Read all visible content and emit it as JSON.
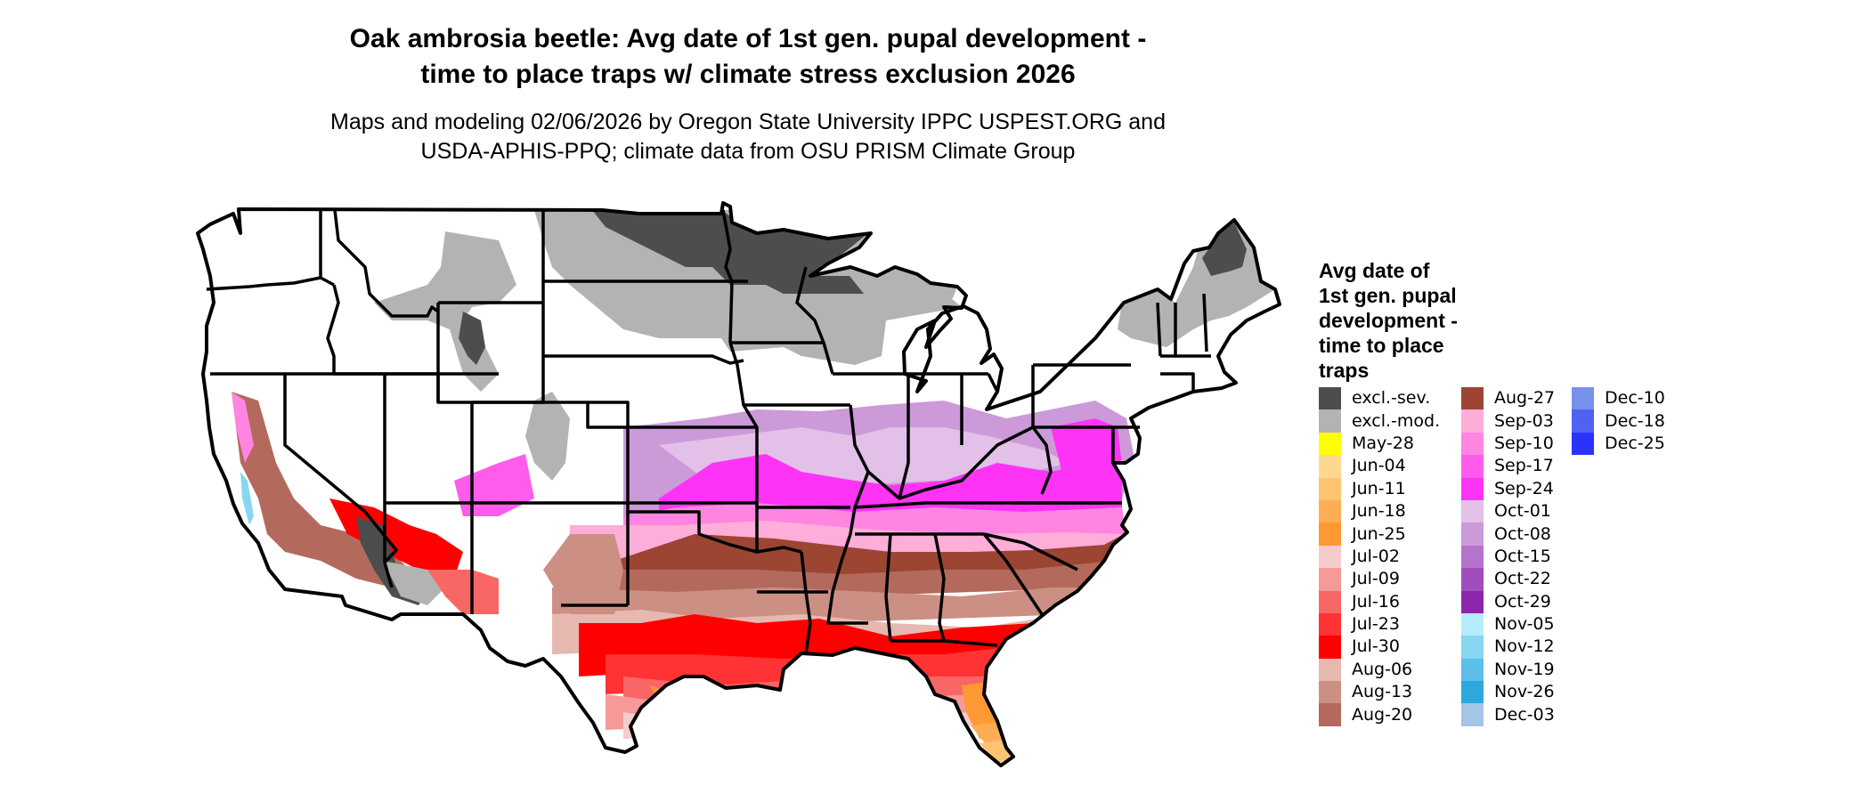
{
  "header": {
    "title_line1": "Oak ambrosia beetle: Avg date of 1st gen. pupal development -",
    "title_line2": "time to place traps w/ climate stress exclusion 2026",
    "subtitle_line1": "Maps and modeling 02/06/2026 by Oregon State University IPPC USPEST.ORG and",
    "subtitle_line2": "USDA-APHIS-PPQ; climate data from OSU PRISM Climate Group"
  },
  "map": {
    "region": "Contiguous United States",
    "border_color": "#000000"
  },
  "legend": {
    "title_lines": [
      "Avg date of",
      "1st gen. pupal",
      "development -",
      "time to place",
      "traps"
    ],
    "columns": [
      [
        {
          "label": "excl.-sev.",
          "color": "#4d4d4d"
        },
        {
          "label": "excl.-mod.",
          "color": "#b3b3b3"
        },
        {
          "label": "May-28",
          "color": "#ffff00"
        },
        {
          "label": "Jun-04",
          "color": "#ffd88f"
        },
        {
          "label": "Jun-11",
          "color": "#ffc371"
        },
        {
          "label": "Jun-18",
          "color": "#ffad55"
        },
        {
          "label": "Jun-25",
          "color": "#ff9933"
        },
        {
          "label": "Jul-02",
          "color": "#f5cccc"
        },
        {
          "label": "Jul-09",
          "color": "#f59999"
        },
        {
          "label": "Jul-16",
          "color": "#f96666"
        },
        {
          "label": "Jul-23",
          "color": "#ff3333"
        },
        {
          "label": "Jul-30",
          "color": "#ff0000"
        },
        {
          "label": "Aug-06",
          "color": "#e6b8b0"
        },
        {
          "label": "Aug-13",
          "color": "#cc8f84"
        },
        {
          "label": "Aug-20",
          "color": "#b36a5c"
        }
      ],
      [
        {
          "label": "Aug-27",
          "color": "#9c4533"
        },
        {
          "label": "Sep-03",
          "color": "#ffadd9"
        },
        {
          "label": "Sep-10",
          "color": "#ff85e0"
        },
        {
          "label": "Sep-17",
          "color": "#ff5ceb"
        },
        {
          "label": "Sep-24",
          "color": "#ff33f5"
        },
        {
          "label": "Oct-01",
          "color": "#e2c0e8"
        },
        {
          "label": "Oct-08",
          "color": "#cc99d9"
        },
        {
          "label": "Oct-15",
          "color": "#b573cc"
        },
        {
          "label": "Oct-22",
          "color": "#a14dbd"
        },
        {
          "label": "Oct-29",
          "color": "#8c26ab"
        },
        {
          "label": "Nov-05",
          "color": "#b5ecfc"
        },
        {
          "label": "Nov-12",
          "color": "#88d6f2"
        },
        {
          "label": "Nov-19",
          "color": "#5bbfea"
        },
        {
          "label": "Nov-26",
          "color": "#2ca8dc"
        },
        {
          "label": "Dec-03",
          "color": "#a2c5e8"
        }
      ],
      [
        {
          "label": "Dec-10",
          "color": "#7890eb"
        },
        {
          "label": "Dec-18",
          "color": "#5062f2"
        },
        {
          "label": "Dec-25",
          "color": "#2a33fb"
        }
      ]
    ]
  }
}
